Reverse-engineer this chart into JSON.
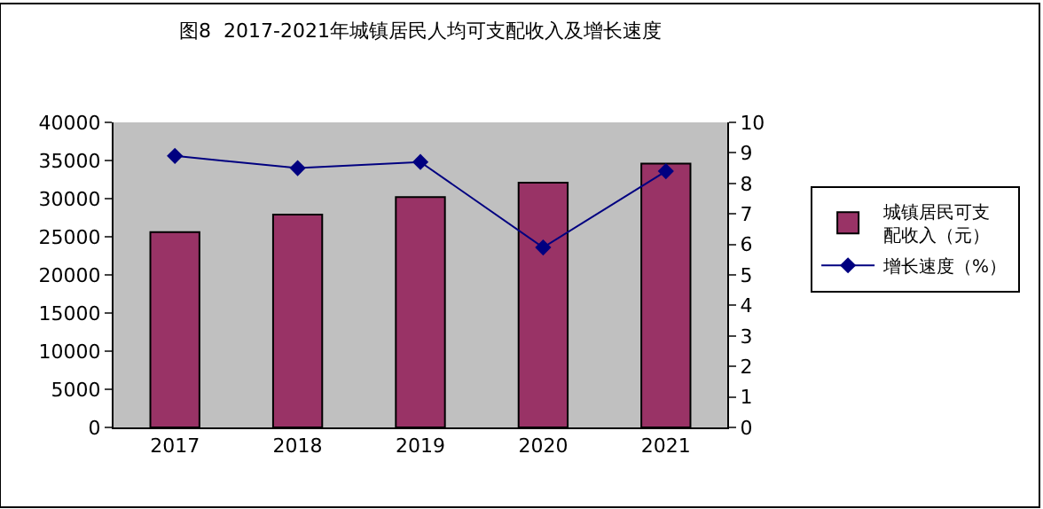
{
  "chart_data": {
    "type": "bar",
    "title": "图8  2017-2021年城镇居民人均可支配收入及增长速度",
    "categories": [
      "2017",
      "2018",
      "2019",
      "2020",
      "2021"
    ],
    "series": [
      {
        "name": "城镇居民可支配收入（元）",
        "color": "#993366",
        "values": [
          25600,
          27900,
          30200,
          32100,
          34600
        ]
      },
      {
        "name": "增长速度（%）",
        "type": "line",
        "axis": "y2",
        "color": "#000080",
        "marker": "diamond",
        "values": [
          8.9,
          8.5,
          8.7,
          5.9,
          8.4
        ]
      }
    ],
    "ylim": [
      0,
      40000
    ],
    "yticks": [
      0,
      5000,
      10000,
      15000,
      20000,
      25000,
      30000,
      35000,
      40000
    ],
    "y2lim": [
      0,
      10
    ],
    "y2ticks": [
      0,
      1,
      2,
      3,
      4,
      5,
      6,
      7,
      8,
      9,
      10
    ],
    "grid": false,
    "legend": "right"
  }
}
